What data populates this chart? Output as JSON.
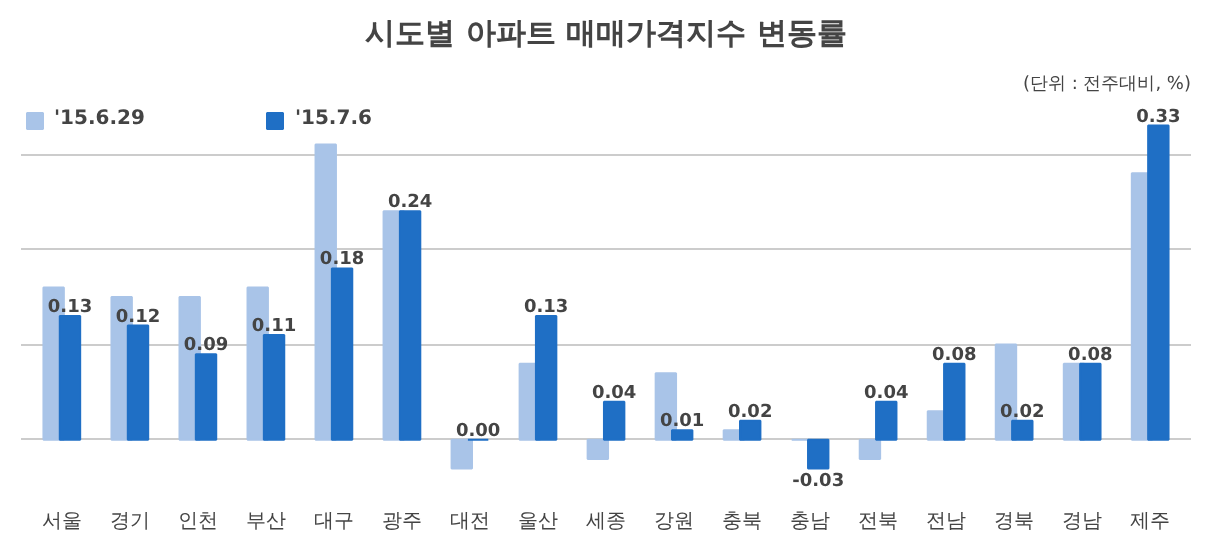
{
  "chart_data": {
    "type": "bar",
    "title": "시도별 아파트 매매가격지수 변동률",
    "annotations": [
      "(단위 : 전주대비, %)"
    ],
    "categories": [
      "서울",
      "경기",
      "인천",
      "부산",
      "대구",
      "광주",
      "대전",
      "울산",
      "세종",
      "강원",
      "충북",
      "충남",
      "전북",
      "전남",
      "경북",
      "경남",
      "제주"
    ],
    "series": [
      {
        "name": "'15.6.29",
        "color": "#a9c4e8",
        "values": [
          0.16,
          0.15,
          0.15,
          0.16,
          0.31,
          0.24,
          -0.03,
          0.08,
          -0.02,
          0.07,
          0.01,
          0.0,
          -0.02,
          0.03,
          0.1,
          0.08,
          0.28
        ]
      },
      {
        "name": "'15.7.6",
        "color": "#1f6fc5",
        "values": [
          0.13,
          0.12,
          0.09,
          0.11,
          0.18,
          0.24,
          0.0,
          0.13,
          0.04,
          0.01,
          0.02,
          -0.03,
          0.04,
          0.08,
          0.02,
          0.08,
          0.33
        ],
        "value_labels": [
          "0.13",
          "0.12",
          "0.09",
          "0.11",
          "0.18",
          "0.24",
          "0.00",
          "0.13",
          "0.04",
          "0.01",
          "0.02",
          "-0.03",
          "0.04",
          "0.08",
          "0.02",
          "0.08",
          "0.33"
        ]
      }
    ],
    "tick_labels": "x",
    "grid": "y",
    "legend": "top left"
  }
}
